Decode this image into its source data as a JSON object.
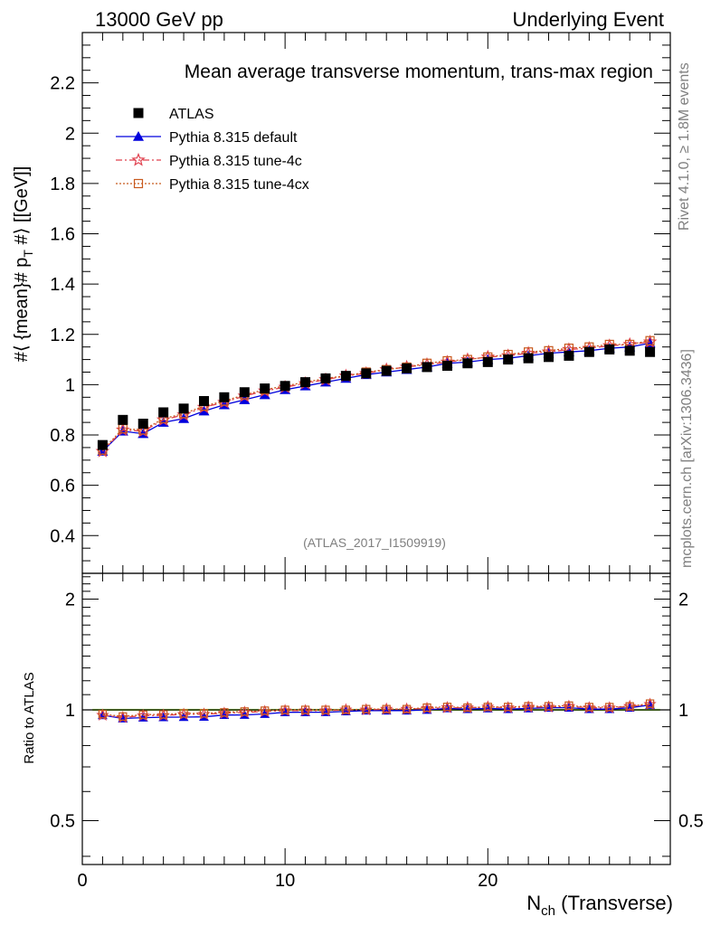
{
  "header": {
    "left": "13000 GeV pp",
    "right": "Underlying Event"
  },
  "side_labels": {
    "rivet": "Rivet 4.1.0, ≥ 1.8M events",
    "mcplots": "mcplots.cern.ch [arXiv:1306.3436]"
  },
  "chart_data": {
    "type": "line",
    "title": "Mean average transverse momentum, trans-max region",
    "watermark": "(ATLAS_2017_I1509919)",
    "ylabel": "#⟨ {mean}# p_T #⟩ [[GeV]]",
    "ylabel_parts": {
      "main": "#⟨ {mean}# p",
      "sub": "T",
      "tail": " #⟩ [[GeV]]"
    },
    "xlabel": "N_ch (Transverse)",
    "xlabel_parts": {
      "main": "N",
      "sub": "ch",
      "tail": " (Transverse)"
    },
    "ratio_ylabel": "Ratio to ATLAS",
    "xlim": [
      0,
      29
    ],
    "ylim": [
      0.25,
      2.4
    ],
    "ratio_ylim": [
      0.38,
      2.35
    ],
    "x_ticks": [
      {
        "value": 0,
        "label": "0"
      },
      {
        "value": 10,
        "label": "10"
      },
      {
        "value": 20,
        "label": "20"
      }
    ],
    "y_ticks": [
      {
        "value": 0.4,
        "label": "0.4"
      },
      {
        "value": 0.6,
        "label": "0.6"
      },
      {
        "value": 0.8,
        "label": "0.8"
      },
      {
        "value": 1.0,
        "label": "1"
      },
      {
        "value": 1.2,
        "label": "1.2"
      },
      {
        "value": 1.4,
        "label": "1.4"
      },
      {
        "value": 1.6,
        "label": "1.6"
      },
      {
        "value": 1.8,
        "label": "1.8"
      },
      {
        "value": 2.0,
        "label": "2"
      },
      {
        "value": 2.2,
        "label": "2.2"
      }
    ],
    "ratio_ticks": [
      {
        "value": 0.5,
        "label": "0.5"
      },
      {
        "value": 1.0,
        "label": "1"
      },
      {
        "value": 2.0,
        "label": "2"
      }
    ],
    "x": [
      1,
      2,
      3,
      4,
      5,
      6,
      7,
      8,
      9,
      10,
      11,
      12,
      13,
      14,
      15,
      16,
      17,
      18,
      19,
      20,
      21,
      22,
      23,
      24,
      25,
      26,
      27,
      28
    ],
    "series": [
      {
        "name": "ATLAS",
        "marker": "square",
        "color": "#000000",
        "dash": "none",
        "values": [
          0.76,
          0.86,
          0.845,
          0.89,
          0.905,
          0.935,
          0.95,
          0.97,
          0.985,
          0.995,
          1.01,
          1.025,
          1.035,
          1.045,
          1.055,
          1.065,
          1.07,
          1.075,
          1.085,
          1.09,
          1.1,
          1.105,
          1.11,
          1.115,
          1.13,
          1.14,
          1.135,
          1.13
        ]
      },
      {
        "name": "Pythia 8.315 default",
        "marker": "triangle",
        "color": "#0000dd",
        "dash": "none",
        "values": [
          0.735,
          0.815,
          0.805,
          0.85,
          0.865,
          0.895,
          0.92,
          0.94,
          0.96,
          0.98,
          0.995,
          1.01,
          1.025,
          1.04,
          1.05,
          1.06,
          1.07,
          1.085,
          1.09,
          1.1,
          1.105,
          1.115,
          1.125,
          1.13,
          1.135,
          1.145,
          1.15,
          1.165
        ]
      },
      {
        "name": "Pythia 8.315 tune-4c",
        "marker": "star",
        "color": "#e0404e",
        "dash": "7,3,2,3",
        "values": [
          0.735,
          0.82,
          0.815,
          0.86,
          0.88,
          0.91,
          0.93,
          0.955,
          0.975,
          0.99,
          1.005,
          1.02,
          1.035,
          1.045,
          1.06,
          1.07,
          1.08,
          1.09,
          1.1,
          1.11,
          1.115,
          1.125,
          1.13,
          1.14,
          1.145,
          1.155,
          1.16,
          1.17
        ]
      },
      {
        "name": "Pythia 8.315 tune-4cx",
        "marker": "open-square",
        "color": "#c85a1e",
        "dash": "2,2",
        "values": [
          0.74,
          0.825,
          0.82,
          0.865,
          0.885,
          0.915,
          0.935,
          0.96,
          0.98,
          0.995,
          1.01,
          1.025,
          1.035,
          1.05,
          1.06,
          1.07,
          1.085,
          1.095,
          1.1,
          1.11,
          1.12,
          1.13,
          1.135,
          1.145,
          1.15,
          1.16,
          1.16,
          1.175
        ]
      }
    ],
    "ratio_band_color": "#aaf05a"
  }
}
